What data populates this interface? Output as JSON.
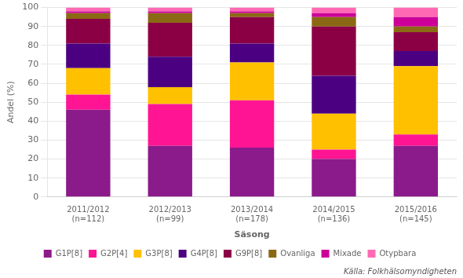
{
  "chart_data": {
    "type": "bar",
    "stacked": true,
    "categories": [
      "2011/2012\n(n=112)",
      "2012/2013\n(n=99)",
      "2013/2014\n(n=178)",
      "2014/2015\n(n=136)",
      "2015/2016\n(n=145)"
    ],
    "series": [
      {
        "name": "G1P[8]",
        "color": "#8B1A8B",
        "values": [
          46,
          27,
          26,
          20,
          27
        ]
      },
      {
        "name": "G2P[4]",
        "color": "#FF1493",
        "values": [
          8,
          22,
          25,
          5,
          6
        ]
      },
      {
        "name": "G3P[8]",
        "color": "#FFC000",
        "values": [
          14,
          9,
          20,
          19,
          36
        ]
      },
      {
        "name": "G4P[8]",
        "color": "#4B0082",
        "values": [
          13,
          16,
          10,
          20,
          8
        ]
      },
      {
        "name": "G9P[8]",
        "color": "#8B0045",
        "values": [
          13,
          18,
          14,
          26,
          10
        ]
      },
      {
        "name": "Ovanliga",
        "color": "#8B6914",
        "values": [
          3,
          5,
          2,
          5,
          3
        ]
      },
      {
        "name": "Mixade",
        "color": "#CC0099",
        "values": [
          1,
          1,
          1,
          2,
          5
        ]
      },
      {
        "name": "Otypbara",
        "color": "#FF69B4",
        "values": [
          2,
          2,
          2,
          3,
          5
        ]
      }
    ],
    "ylabel": "Andel (%)",
    "xlabel": "Säsong",
    "ylim": [
      0,
      100
    ],
    "yticks": [
      0,
      10,
      20,
      30,
      40,
      50,
      60,
      70,
      80,
      90,
      100
    ],
    "grid": true,
    "legend": "bottom",
    "annotations": [
      "Källa: Folkhälsomyndigheten"
    ]
  }
}
